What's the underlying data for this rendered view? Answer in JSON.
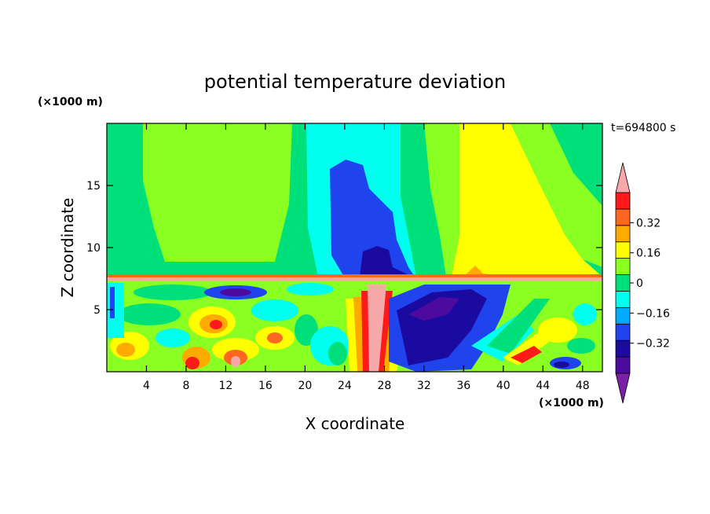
{
  "chart_data": {
    "type": "heatmap",
    "title": "potential temperature deviation",
    "xlabel": "X coordinate",
    "ylabel": "Z coordinate",
    "x_unit": "(×1000 m)",
    "y_unit": "(×1000 m)",
    "time_label": "t=694800 s",
    "xlim": [
      0,
      50
    ],
    "ylim": [
      0,
      20
    ],
    "x_ticks": [
      4,
      8,
      12,
      16,
      20,
      24,
      28,
      32,
      36,
      40,
      44,
      48
    ],
    "x_tick_labels": [
      "4",
      "8",
      "12",
      "16",
      "20",
      "24",
      "28",
      "32",
      "36",
      "40",
      "44",
      "48"
    ],
    "y_ticks": [
      5,
      10,
      15
    ],
    "y_tick_labels": [
      "5",
      "10",
      "15"
    ],
    "colorbar": {
      "levels": [
        -0.48,
        -0.4,
        -0.32,
        -0.24,
        -0.16,
        -0.08,
        0,
        0.08,
        0.16,
        0.24,
        0.32,
        0.4
      ],
      "labeled_values": [
        0.32,
        0.16,
        0,
        -0.16,
        -0.32
      ],
      "labels": [
        "0.32",
        "0.16",
        "0",
        "−0.16",
        "−0.32"
      ],
      "colors": [
        "#7a1fa8",
        "#4d0a9e",
        "#1a0aa0",
        "#1f44ee",
        "#00aaff",
        "#00ffee",
        "#00e07a",
        "#8aff22",
        "#ffff00",
        "#ffaa00",
        "#ff6622",
        "#ff1a1a",
        "#f7a8a8"
      ],
      "extend": "both"
    },
    "upper_field": [
      {
        "x": [
          0,
          4
        ],
        "z_range": [
          7.3,
          20
        ],
        "level": 0.04
      },
      {
        "x": [
          4,
          15
        ],
        "z_range": [
          7.3,
          20
        ],
        "level": 0.04
      },
      {
        "x": [
          15,
          19
        ],
        "z_range": [
          7.3,
          20
        ],
        "level": 0.04
      },
      {
        "x": [
          19,
          23
        ],
        "z_range": [
          7.3,
          20
        ],
        "level": -0.06
      },
      {
        "x": [
          23,
          29
        ],
        "z_range": [
          7.3,
          20
        ],
        "level": -0.14
      },
      {
        "x": [
          24,
          28
        ],
        "z_range": [
          8,
          17
        ],
        "level": -0.24
      },
      {
        "x": [
          27,
          31
        ],
        "z_range": [
          7.3,
          20
        ],
        "level": 0.0
      },
      {
        "x": [
          31,
          35
        ],
        "z_range": [
          7.3,
          20
        ],
        "level": 0.04
      },
      {
        "x": [
          35,
          45
        ],
        "z_range": [
          7.3,
          20
        ],
        "level": 0.1
      },
      {
        "x": [
          45,
          50
        ],
        "z_range": [
          7.3,
          20
        ],
        "level": 0.0
      }
    ]
  }
}
